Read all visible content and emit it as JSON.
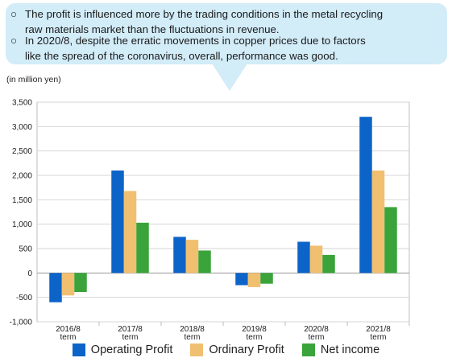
{
  "callout": {
    "items": [
      {
        "mark": "○",
        "line1": "The profit is influenced more by the trading conditions in the metal recycling",
        "line2": "raw materials market than the fluctuations in revenue."
      },
      {
        "mark": "○",
        "line1": "In 2020/8, despite the erratic movements in copper prices due to factors",
        "line2": "like the spread of the coronavirus, overall, performance was good."
      }
    ]
  },
  "chart_data": {
    "type": "bar",
    "unit_label": "(in million yen)",
    "categories": [
      [
        "2016/8",
        "term"
      ],
      [
        "2017/8",
        "term"
      ],
      [
        "2018/8",
        "term"
      ],
      [
        "2019/8",
        "term"
      ],
      [
        "2020/8",
        "term"
      ],
      [
        "2021/8",
        "term"
      ]
    ],
    "series": [
      {
        "name": "Operating Profit",
        "color": "#0d64c8",
        "values": [
          -600,
          2100,
          740,
          -250,
          640,
          3200
        ]
      },
      {
        "name": "Ordinary Profit",
        "color": "#f0c070",
        "values": [
          -460,
          1680,
          680,
          -290,
          560,
          2100
        ]
      },
      {
        "name": "Net income",
        "color": "#3aa43a",
        "values": [
          -390,
          1030,
          460,
          -220,
          370,
          1350
        ]
      }
    ],
    "ylim": [
      -1000,
      3500
    ],
    "yticks": [
      "-1,000",
      "-500",
      "0",
      "500",
      "1,000",
      "1,500",
      "2,000",
      "2,500",
      "3,000",
      "3,500"
    ],
    "ytick_values": [
      -1000,
      -500,
      0,
      500,
      1000,
      1500,
      2000,
      2500,
      3000,
      3500
    ],
    "grid": true,
    "legend": "bottom"
  }
}
